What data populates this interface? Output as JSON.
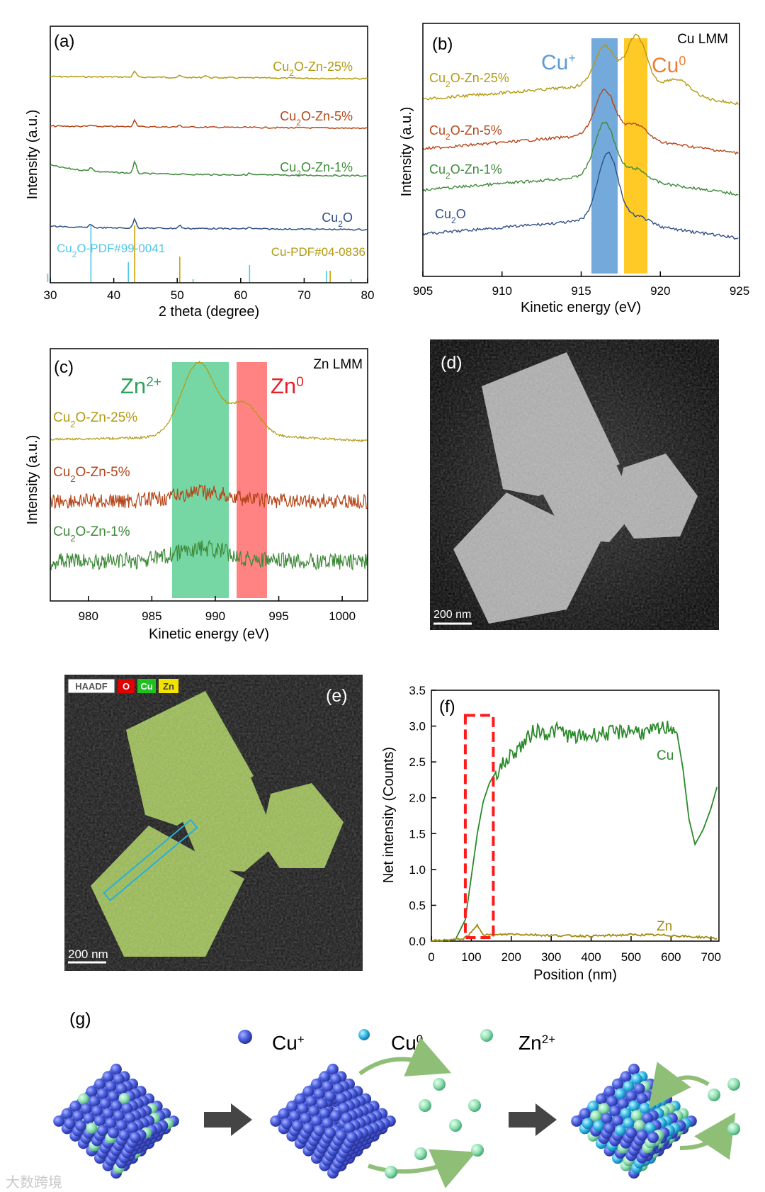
{
  "colors": {
    "gold": "#b39a12",
    "rust": "#b5461a",
    "green": "#3f8a3a",
    "navy": "#2f4f86",
    "cyan": "#4ec6e6",
    "ref_gold": "#c8a300",
    "cu_plus_band": "#5b9bd5",
    "cu0_band": "#ffc000",
    "zn2_band": "#3cc67f",
    "zn0_band": "#ff5a5a",
    "cu_line": "#2a8a2a",
    "zn_line": "#a38b10",
    "box_red": "#ff1a1a"
  },
  "panel_a": {
    "chart_data": {
      "type": "line",
      "panel_label": "(a)",
      "xlabel": "2 theta (degree)",
      "ylabel": "Intensity (a.u.)",
      "xlim": [
        30,
        80
      ],
      "xticks": [
        "30",
        "40",
        "50",
        "60",
        "70",
        "80"
      ],
      "series": [
        {
          "name_base": "Cu",
          "name_sub": "2",
          "name_rest": "O-Zn-25%",
          "offset": 3,
          "peaks": [
            [
              43.3,
              0.1
            ],
            [
              50.4,
              0.03
            ],
            [
              54.4,
              0.04
            ]
          ]
        },
        {
          "name_base": "Cu",
          "name_sub": "2",
          "name_rest": "O-Zn-5%",
          "offset": 2,
          "peaks": [
            [
              43.3,
              0.12
            ],
            [
              50.4,
              0.03
            ],
            [
              36.4,
              0.02
            ]
          ]
        },
        {
          "name_base": "Cu",
          "name_sub": "2",
          "name_rest": "O-Zn-1%",
          "offset": 1,
          "peaks": [
            [
              36.4,
              0.07
            ],
            [
              43.3,
              0.2
            ],
            [
              61.4,
              0.03
            ]
          ]
        },
        {
          "name_base": "Cu",
          "name_sub": "2",
          "name_rest": "O",
          "offset": 0,
          "peaks": [
            [
              36.4,
              0.06
            ],
            [
              43.3,
              0.16
            ],
            [
              50.4,
              0.05
            ],
            [
              61.4,
              0.03
            ]
          ]
        }
      ],
      "references": [
        {
          "name": "Cu2O-PDF#99-0041",
          "label_base": "Cu",
          "label_sub": "2",
          "label_rest": "O-PDF#99-0041",
          "lines": [
            [
              29.6,
              0.15
            ],
            [
              36.4,
              1.0
            ],
            [
              42.3,
              0.35
            ],
            [
              52.5,
              0.05
            ],
            [
              61.4,
              0.3
            ],
            [
              73.5,
              0.2
            ],
            [
              77.4,
              0.05
            ]
          ]
        },
        {
          "name": "Cu-PDF#04-0836",
          "label_base": "Cu-PDF#04-0836",
          "lines": [
            [
              43.3,
              1.0
            ],
            [
              50.4,
              0.45
            ],
            [
              74.1,
              0.2
            ]
          ]
        }
      ]
    }
  },
  "panel_b": {
    "chart_data": {
      "type": "line",
      "panel_label": "(b)",
      "title": "Cu LMM",
      "xlabel": "Kinetic energy (eV)",
      "ylabel": "Intensity (a.u.)",
      "xlim": [
        905,
        925
      ],
      "xticks": [
        "905",
        "910",
        "915",
        "920",
        "925"
      ],
      "bands": [
        {
          "label": "Cu",
          "sup": "+",
          "from": 915.6,
          "to": 917.3
        },
        {
          "label": "Cu",
          "sup": "0",
          "from": 917.8,
          "to": 919.3
        }
      ],
      "series": [
        {
          "name_base": "Cu",
          "name_sub": "2",
          "name_rest": "O-Zn-25%"
        },
        {
          "name_base": "Cu",
          "name_sub": "2",
          "name_rest": "O-Zn-5%"
        },
        {
          "name_base": "Cu",
          "name_sub": "2",
          "name_rest": "O-Zn-1%"
        },
        {
          "name_base": "Cu",
          "name_sub": "2",
          "name_rest": "O"
        }
      ]
    }
  },
  "panel_c": {
    "chart_data": {
      "type": "line",
      "panel_label": "(c)",
      "title": "Zn LMM",
      "xlabel": "Kinetic energy (eV)",
      "ylabel": "Intensity (a.u.)",
      "xlim": [
        977,
        1002
      ],
      "xticks": [
        "980",
        "985",
        "990",
        "995",
        "1000"
      ],
      "bands": [
        {
          "label": "Zn",
          "sup": "2+",
          "from": 986.6,
          "to": 991.0
        },
        {
          "label": "Zn",
          "sup": "0",
          "from": 991.6,
          "to": 994.0
        }
      ],
      "series": [
        {
          "name_base": "Cu",
          "name_sub": "2",
          "name_rest": "O-Zn-25%"
        },
        {
          "name_base": "Cu",
          "name_sub": "2",
          "name_rest": "O-Zn-5%"
        },
        {
          "name_base": "Cu",
          "name_sub": "2",
          "name_rest": "O-Zn-1%"
        }
      ]
    }
  },
  "panel_d": {
    "label": "(d)",
    "scale_bar": "200 nm"
  },
  "panel_e": {
    "label": "(e)",
    "scale_bar": "200 nm",
    "legend": [
      "HAADF",
      "O",
      "Cu",
      "Zn"
    ]
  },
  "panel_f": {
    "chart_data": {
      "type": "line",
      "panel_label": "(f)",
      "xlabel": "Position (nm)",
      "ylabel": "Net intensity (Counts)",
      "xlim": [
        0,
        720
      ],
      "ylim": [
        0,
        3.5
      ],
      "xticks": [
        "0",
        "100",
        "200",
        "300",
        "400",
        "500",
        "600",
        "700"
      ],
      "yticks": [
        "0.0",
        "0.5",
        "1.0",
        "1.5",
        "2.0",
        "2.5",
        "3.0",
        "3.5"
      ],
      "highlight_range": [
        85,
        155
      ],
      "series": [
        {
          "name": "Cu",
          "x": [
            0,
            60,
            85,
            100,
            115,
            130,
            145,
            155,
            170,
            200,
            230,
            260,
            290,
            320,
            350,
            380,
            420,
            460,
            500,
            540,
            570,
            600,
            615,
            630,
            645,
            660,
            680,
            700,
            715
          ],
          "y": [
            0,
            0.02,
            0.3,
            0.9,
            1.5,
            1.95,
            2.2,
            2.3,
            2.4,
            2.6,
            2.75,
            2.95,
            2.9,
            2.95,
            2.85,
            2.85,
            2.9,
            2.9,
            2.95,
            2.9,
            2.95,
            3.0,
            2.9,
            2.4,
            1.7,
            1.35,
            1.55,
            1.85,
            2.15
          ]
        },
        {
          "name": "Zn",
          "x": [
            0,
            80,
            100,
            115,
            130,
            150,
            200,
            300,
            400,
            500,
            600,
            650,
            700,
            715
          ],
          "y": [
            0,
            0.03,
            0.12,
            0.22,
            0.1,
            0.08,
            0.1,
            0.08,
            0.07,
            0.09,
            0.08,
            0.06,
            0.05,
            0.04
          ]
        }
      ]
    }
  },
  "panel_g": {
    "label": "(g)",
    "legend": [
      {
        "label": "Cu",
        "sup": "+"
      },
      {
        "label": "Cu",
        "sup": "0"
      },
      {
        "label": "Zn",
        "sup": "2+"
      }
    ]
  },
  "watermark": "大数跨境"
}
